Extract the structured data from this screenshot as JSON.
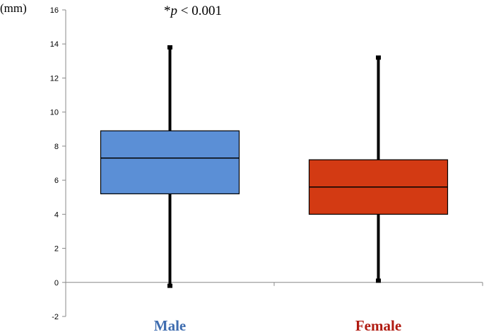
{
  "chart_data": {
    "type": "boxplot",
    "ylabel": "(mm)",
    "annotation_star": "*",
    "annotation_p": "p",
    "annotation_rest": " < 0.001",
    "ylim": [
      -2,
      16
    ],
    "yticks": [
      -2,
      0,
      2,
      4,
      6,
      8,
      10,
      12,
      14,
      16
    ],
    "categories": [
      "Male",
      "Female"
    ],
    "boxes": [
      {
        "category": "Male",
        "min": -0.2,
        "q1": 5.2,
        "median": 7.3,
        "q3": 8.9,
        "max": 13.8,
        "color": "#5b8fd6",
        "label_color": "#3f6db0"
      },
      {
        "category": "Female",
        "min": 0.1,
        "q1": 4.0,
        "median": 5.6,
        "q3": 7.2,
        "max": 13.2,
        "color": "#d33a13",
        "label_color": "#b01a10"
      }
    ],
    "grid": false
  }
}
